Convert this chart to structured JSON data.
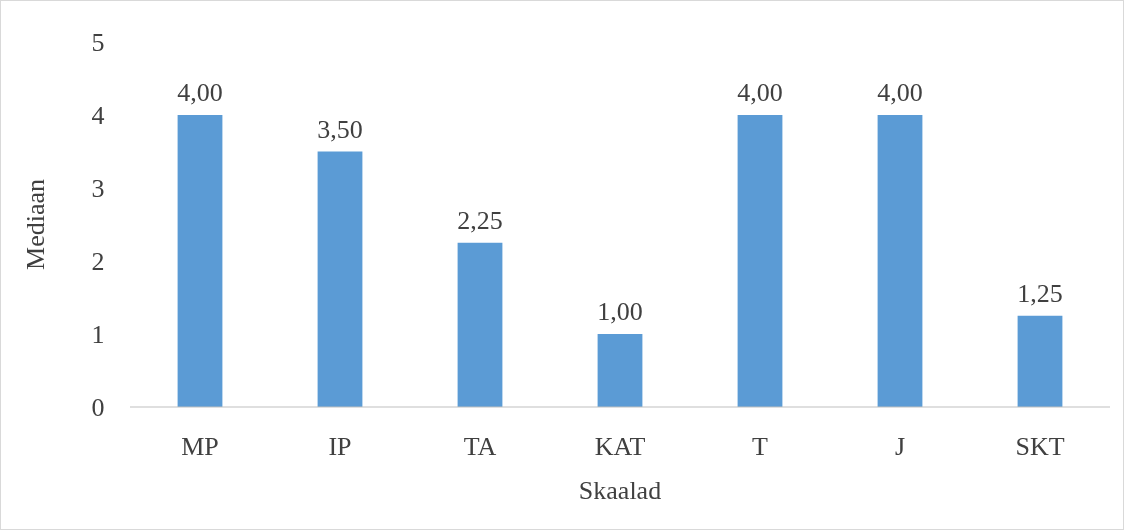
{
  "chart_data": {
    "type": "bar",
    "xlabel": "Skaalad",
    "ylabel": "Mediaan",
    "categories": [
      "MP",
      "IP",
      "TA",
      "KAT",
      "T",
      "J",
      "SKT"
    ],
    "values": [
      4,
      3.5,
      2.25,
      1,
      4,
      4,
      1.25
    ],
    "value_labels": [
      "4,00",
      "3,50",
      "2,25",
      "1,00",
      "4,00",
      "4,00",
      "1,25"
    ],
    "color": "#5b9bd5",
    "ylim": [
      0,
      5
    ],
    "yticks": [
      0,
      1,
      2,
      3,
      4,
      5
    ],
    "grid": false
  }
}
